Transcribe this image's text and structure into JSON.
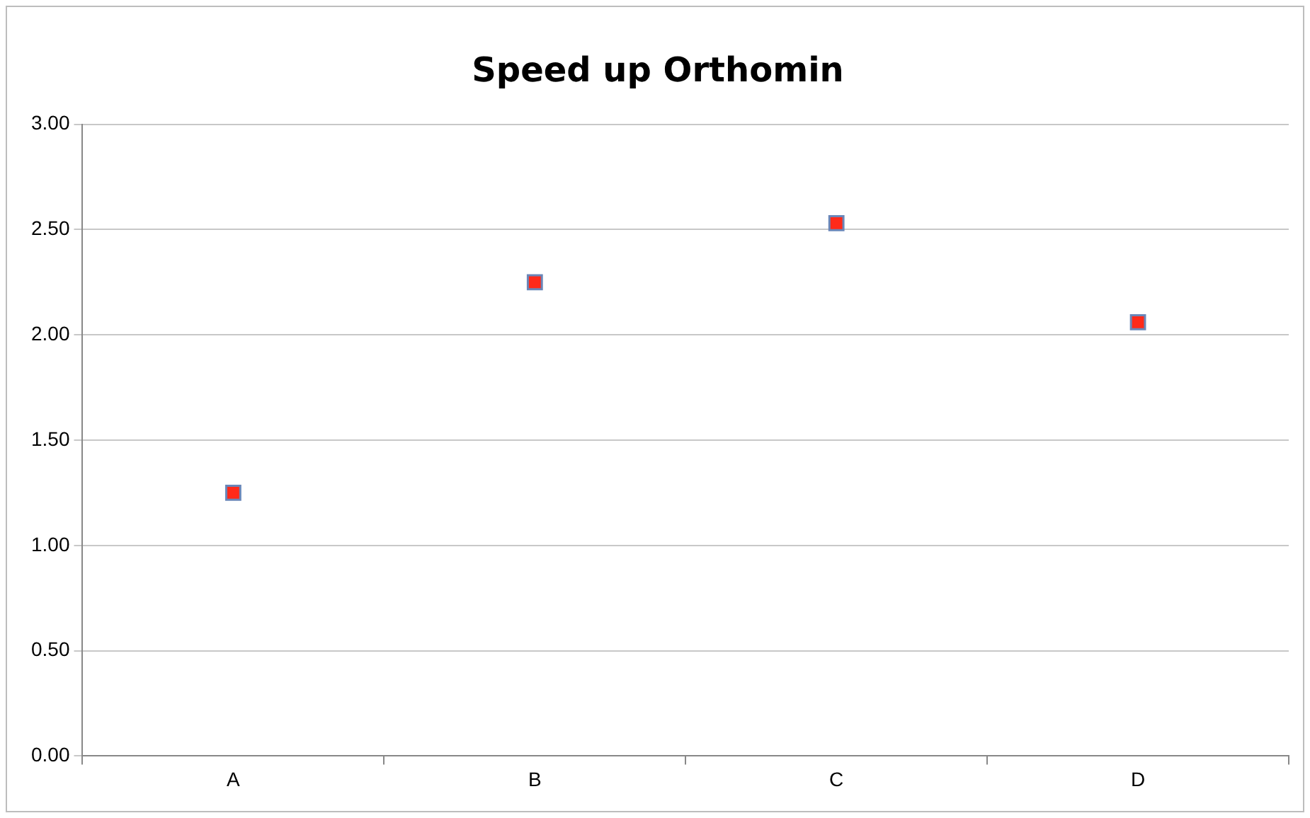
{
  "chart_data": {
    "type": "scatter",
    "title": "Speed up Orthomin",
    "categories": [
      "A",
      "B",
      "C",
      "D"
    ],
    "series": [
      {
        "color": "#ff2a1a",
        "values": [
          1.25,
          2.25,
          2.53,
          2.06
        ]
      }
    ],
    "ylim": [
      0,
      3
    ],
    "yticks": [
      {
        "value": 0,
        "label": "0.00"
      },
      {
        "value": 0.5,
        "label": "0.50"
      },
      {
        "value": 1,
        "label": "1.00"
      },
      {
        "value": 1.5,
        "label": "1.50"
      },
      {
        "value": 2,
        "label": "2.00"
      },
      {
        "value": 2.5,
        "label": "2.50"
      },
      {
        "value": 3,
        "label": "3.00"
      }
    ],
    "grid": "y",
    "legend": false,
    "marker": "square"
  }
}
